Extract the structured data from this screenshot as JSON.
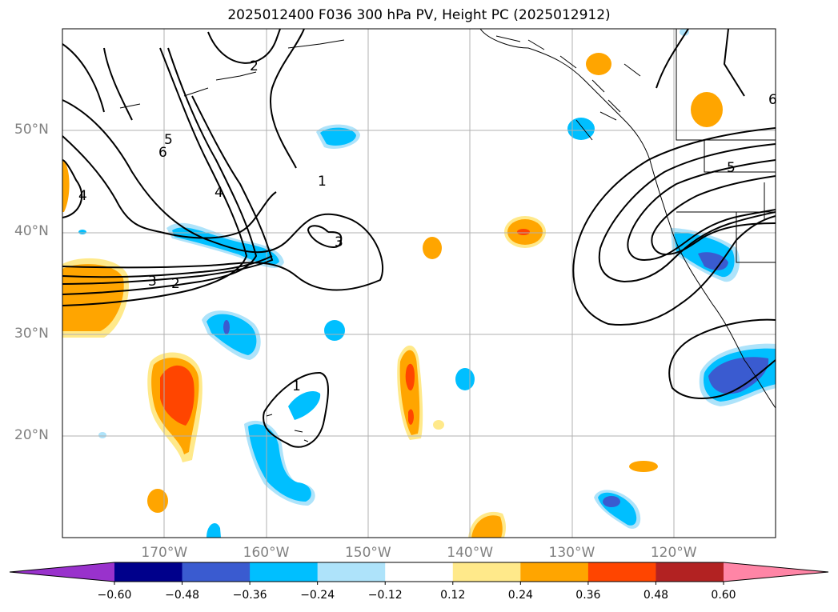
{
  "title": "2025012400 F036 300 hPa PV, Height PC (2025012912)",
  "map": {
    "lat_labels": [
      {
        "text": "50°N",
        "lat": 50
      },
      {
        "text": "40°N",
        "lat": 40
      },
      {
        "text": "30°N",
        "lat": 30
      },
      {
        "text": "20°N",
        "lat": 20
      }
    ],
    "lon_labels": [
      {
        "text": "170°W",
        "lon": -170
      },
      {
        "text": "160°W",
        "lon": -160
      },
      {
        "text": "150°W",
        "lon": -150
      },
      {
        "text": "140°W",
        "lon": -140
      },
      {
        "text": "130°W",
        "lon": -130
      },
      {
        "text": "120°W",
        "lon": -120
      }
    ],
    "extent": {
      "lon_min": -180,
      "lon_max": -110,
      "lat_min": 10,
      "lat_max": 60
    },
    "grid": true,
    "contour_labels": [
      "1",
      "2",
      "3",
      "4",
      "5",
      "6",
      "1",
      "2",
      "3",
      "4",
      "5",
      "6"
    ]
  },
  "colorbar": {
    "ticks": [
      "−0.60",
      "−0.48",
      "−0.36",
      "−0.24",
      "−0.12",
      "0.12",
      "0.24",
      "0.36",
      "0.48",
      "0.60"
    ],
    "colors": [
      "#9932cc",
      "#00008b",
      "#3a5bd0",
      "#00bfff",
      "#aee3fa",
      "#ffffff",
      "#ffe98a",
      "#ffa500",
      "#ff4500",
      "#b22222",
      "#ff85a6"
    ],
    "extend": "both"
  },
  "colors": {
    "neg_light": "#aee3fa",
    "neg_mid": "#00bfff",
    "neg_strong": "#3a5bd0",
    "pos_light": "#ffe98a",
    "pos_mid": "#ffa500",
    "pos_strong": "#ff4500",
    "grid": "#b0b0b0",
    "contour": "#000000"
  }
}
